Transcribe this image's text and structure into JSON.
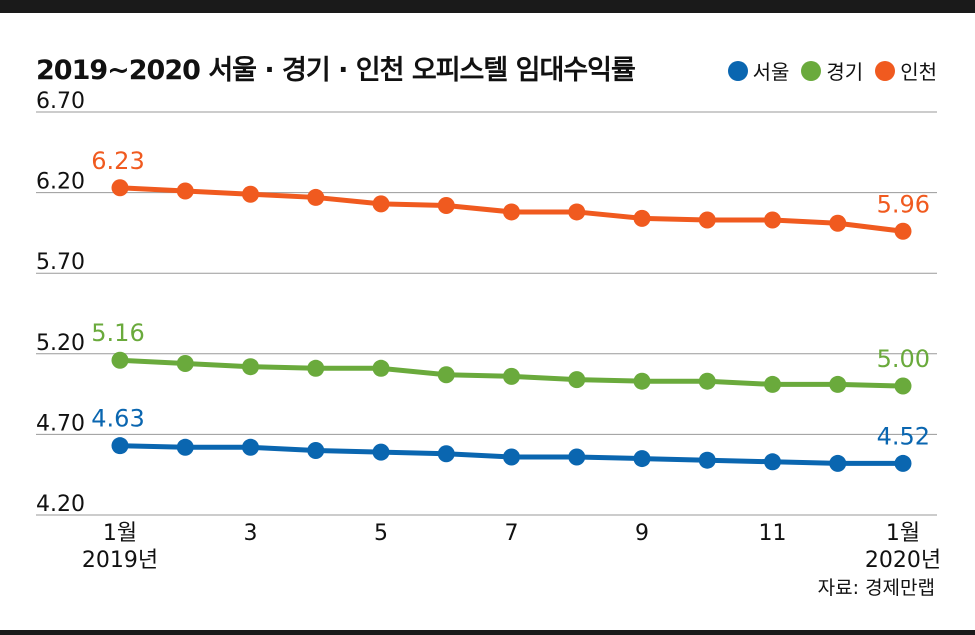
{
  "title": "2019~2020 서울 · 경기 · 인천 오피스텔 임대수익률",
  "source": "자료: 경제만랩",
  "colors": {
    "seoul": "#0a66b0",
    "gyeonggi": "#6aaa3c",
    "incheon": "#f05a1f",
    "grid": "#9a9a9a"
  },
  "legend": [
    {
      "label": "서울",
      "color": "#0a66b0"
    },
    {
      "label": "경기",
      "color": "#6aaa3c"
    },
    {
      "label": "인천",
      "color": "#f05a1f"
    }
  ],
  "chart_data": {
    "type": "line",
    "title": "2019~2020 서울 · 경기 · 인천 오피스텔 임대수익률",
    "x": [
      1,
      2,
      3,
      4,
      5,
      6,
      7,
      8,
      9,
      10,
      11,
      12,
      13
    ],
    "x_tick_labels": [
      {
        "x": 1,
        "lines": [
          "1월",
          "2019년"
        ]
      },
      {
        "x": 3,
        "lines": [
          "3"
        ]
      },
      {
        "x": 5,
        "lines": [
          "5"
        ]
      },
      {
        "x": 7,
        "lines": [
          "7"
        ]
      },
      {
        "x": 9,
        "lines": [
          "9"
        ]
      },
      {
        "x": 11,
        "lines": [
          "11"
        ]
      },
      {
        "x": 13,
        "lines": [
          "1월",
          "2020년"
        ]
      }
    ],
    "y_ticks": [
      "4.20",
      "4.70",
      "5.20",
      "5.70",
      "6.20",
      "6.70"
    ],
    "ylim": [
      4.2,
      6.7
    ],
    "grid": true,
    "legend_position": "top-right",
    "series": [
      {
        "name": "인천",
        "color": "#f05a1f",
        "values": [
          6.23,
          6.21,
          6.19,
          6.17,
          6.13,
          6.12,
          6.08,
          6.08,
          6.04,
          6.03,
          6.03,
          6.01,
          5.96
        ],
        "labels": [
          {
            "index": 0,
            "text": "6.23"
          },
          {
            "index": 12,
            "text": "5.96"
          }
        ]
      },
      {
        "name": "경기",
        "color": "#6aaa3c",
        "values": [
          5.16,
          5.14,
          5.12,
          5.11,
          5.11,
          5.07,
          5.06,
          5.04,
          5.03,
          5.03,
          5.01,
          5.01,
          5.0
        ],
        "labels": [
          {
            "index": 0,
            "text": "5.16"
          },
          {
            "index": 12,
            "text": "5.00"
          }
        ]
      },
      {
        "name": "서울",
        "color": "#0a66b0",
        "values": [
          4.63,
          4.62,
          4.62,
          4.6,
          4.59,
          4.58,
          4.56,
          4.56,
          4.55,
          4.54,
          4.53,
          4.52,
          4.52
        ],
        "labels": [
          {
            "index": 0,
            "text": "4.63"
          },
          {
            "index": 12,
            "text": "4.52"
          }
        ]
      }
    ]
  }
}
